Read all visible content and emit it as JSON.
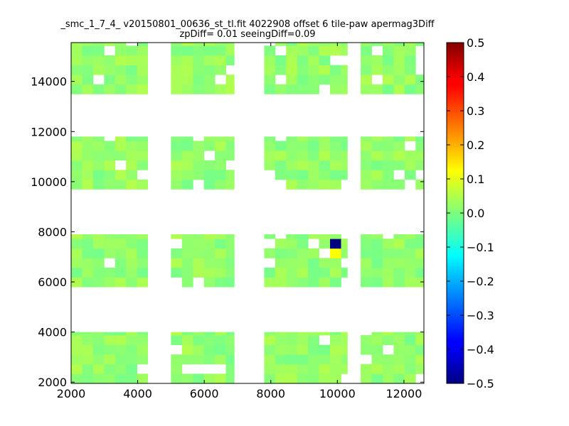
{
  "chart_data": {
    "type": "heatmap",
    "title_line1": "_smc_1_7_4_ v20150801_00636_st_tl.fit 4022908 offset 6 tile-paw apermag3Diff",
    "title_line2": "zpDiff= 0.01 seeingDiff=0.09",
    "xlabel": "",
    "ylabel": "",
    "xlim": [
      2000,
      12600
    ],
    "ylim": [
      1950,
      15550
    ],
    "x_ticks": [
      "2000",
      "4000",
      "6000",
      "8000",
      "10000",
      "12000"
    ],
    "y_ticks": [
      "2000",
      "4000",
      "6000",
      "8000",
      "10000",
      "12000",
      "14000"
    ],
    "colorbar": {
      "colormap": "jet",
      "range": [
        -0.5,
        0.5
      ],
      "ticks": [
        "0.5",
        "0.4",
        "0.3",
        "0.2",
        "0.1",
        "0.0",
        "−0.1",
        "−0.2",
        "−0.3",
        "−0.4",
        "−0.5"
      ]
    },
    "cell_size": [
      330,
      385
    ],
    "blocks_x": [
      [
        2000,
        4300
      ],
      [
        5000,
        6900
      ],
      [
        7800,
        10300
      ],
      [
        10700,
        12600
      ]
    ],
    "blocks_y": [
      [
        1950,
        4000
      ],
      [
        5800,
        7900
      ],
      [
        9700,
        11800
      ],
      [
        13500,
        15550
      ]
    ],
    "highlight_cells": [
      {
        "x": 9900,
        "y": 7700,
        "value": -0.5
      },
      {
        "x": 9900,
        "y": 7300,
        "value": 0.12
      }
    ],
    "base_value": 0.02,
    "value_spread": 0.06
  }
}
